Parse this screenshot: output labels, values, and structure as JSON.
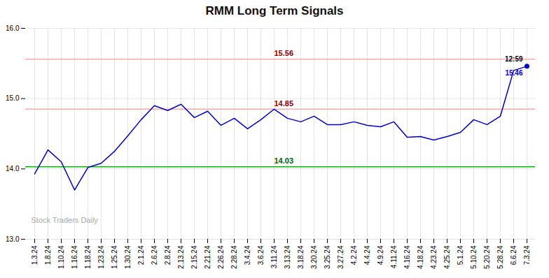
{
  "chart_data": {
    "type": "line",
    "title": "RMM Long Term Signals",
    "categories": [
      "1.3.24",
      "1.8.24",
      "1.10.24",
      "1.16.24",
      "1.18.24",
      "1.23.24",
      "1.25.24",
      "1.30.24",
      "2.1.24",
      "2.6.24",
      "2.8.24",
      "2.13.24",
      "2.15.24",
      "2.21.24",
      "2.26.24",
      "2.28.24",
      "3.4.24",
      "3.6.24",
      "3.11.24",
      "3.13.24",
      "3.18.24",
      "3.20.24",
      "3.25.24",
      "3.27.24",
      "4.2.24",
      "4.4.24",
      "4.9.24",
      "4.11.24",
      "4.16.24",
      "4.18.24",
      "4.23.24",
      "4.25.24",
      "5.1.24",
      "5.10.24",
      "5.20.24",
      "5.28.24",
      "6.6.24",
      "7.3.24"
    ],
    "values": [
      13.93,
      14.27,
      14.1,
      13.7,
      14.02,
      14.08,
      14.25,
      14.47,
      14.7,
      14.9,
      14.83,
      14.92,
      14.73,
      14.82,
      14.62,
      14.72,
      14.57,
      14.7,
      14.85,
      14.72,
      14.67,
      14.75,
      14.63,
      14.63,
      14.67,
      14.62,
      14.6,
      14.67,
      14.45,
      14.46,
      14.41,
      14.46,
      14.52,
      14.7,
      14.63,
      14.75,
      15.4,
      15.46
    ],
    "color": "#0000cc",
    "hlines": [
      {
        "value": 15.56,
        "label": "15.56",
        "color": "#ffaaaa",
        "label_color": "darkred",
        "label_category": "3.11.24"
      },
      {
        "value": 14.85,
        "label": "14.85",
        "color": "#ffaaaa",
        "label_color": "darkred",
        "label_category": "3.11.24"
      },
      {
        "value": 14.03,
        "label": "14.03",
        "color": "#00bb00",
        "label_color": "darkgreen",
        "label_category": "3.11.24"
      }
    ],
    "last_point": {
      "category": "7.3.24",
      "value": 15.46,
      "time_label": "12:59",
      "value_label": "15.46",
      "marker": "circle"
    },
    "watermark": "Stock Traders Daily",
    "ylim": [
      13,
      16
    ],
    "yticks": [
      13,
      14,
      15,
      16
    ],
    "grid": true
  }
}
